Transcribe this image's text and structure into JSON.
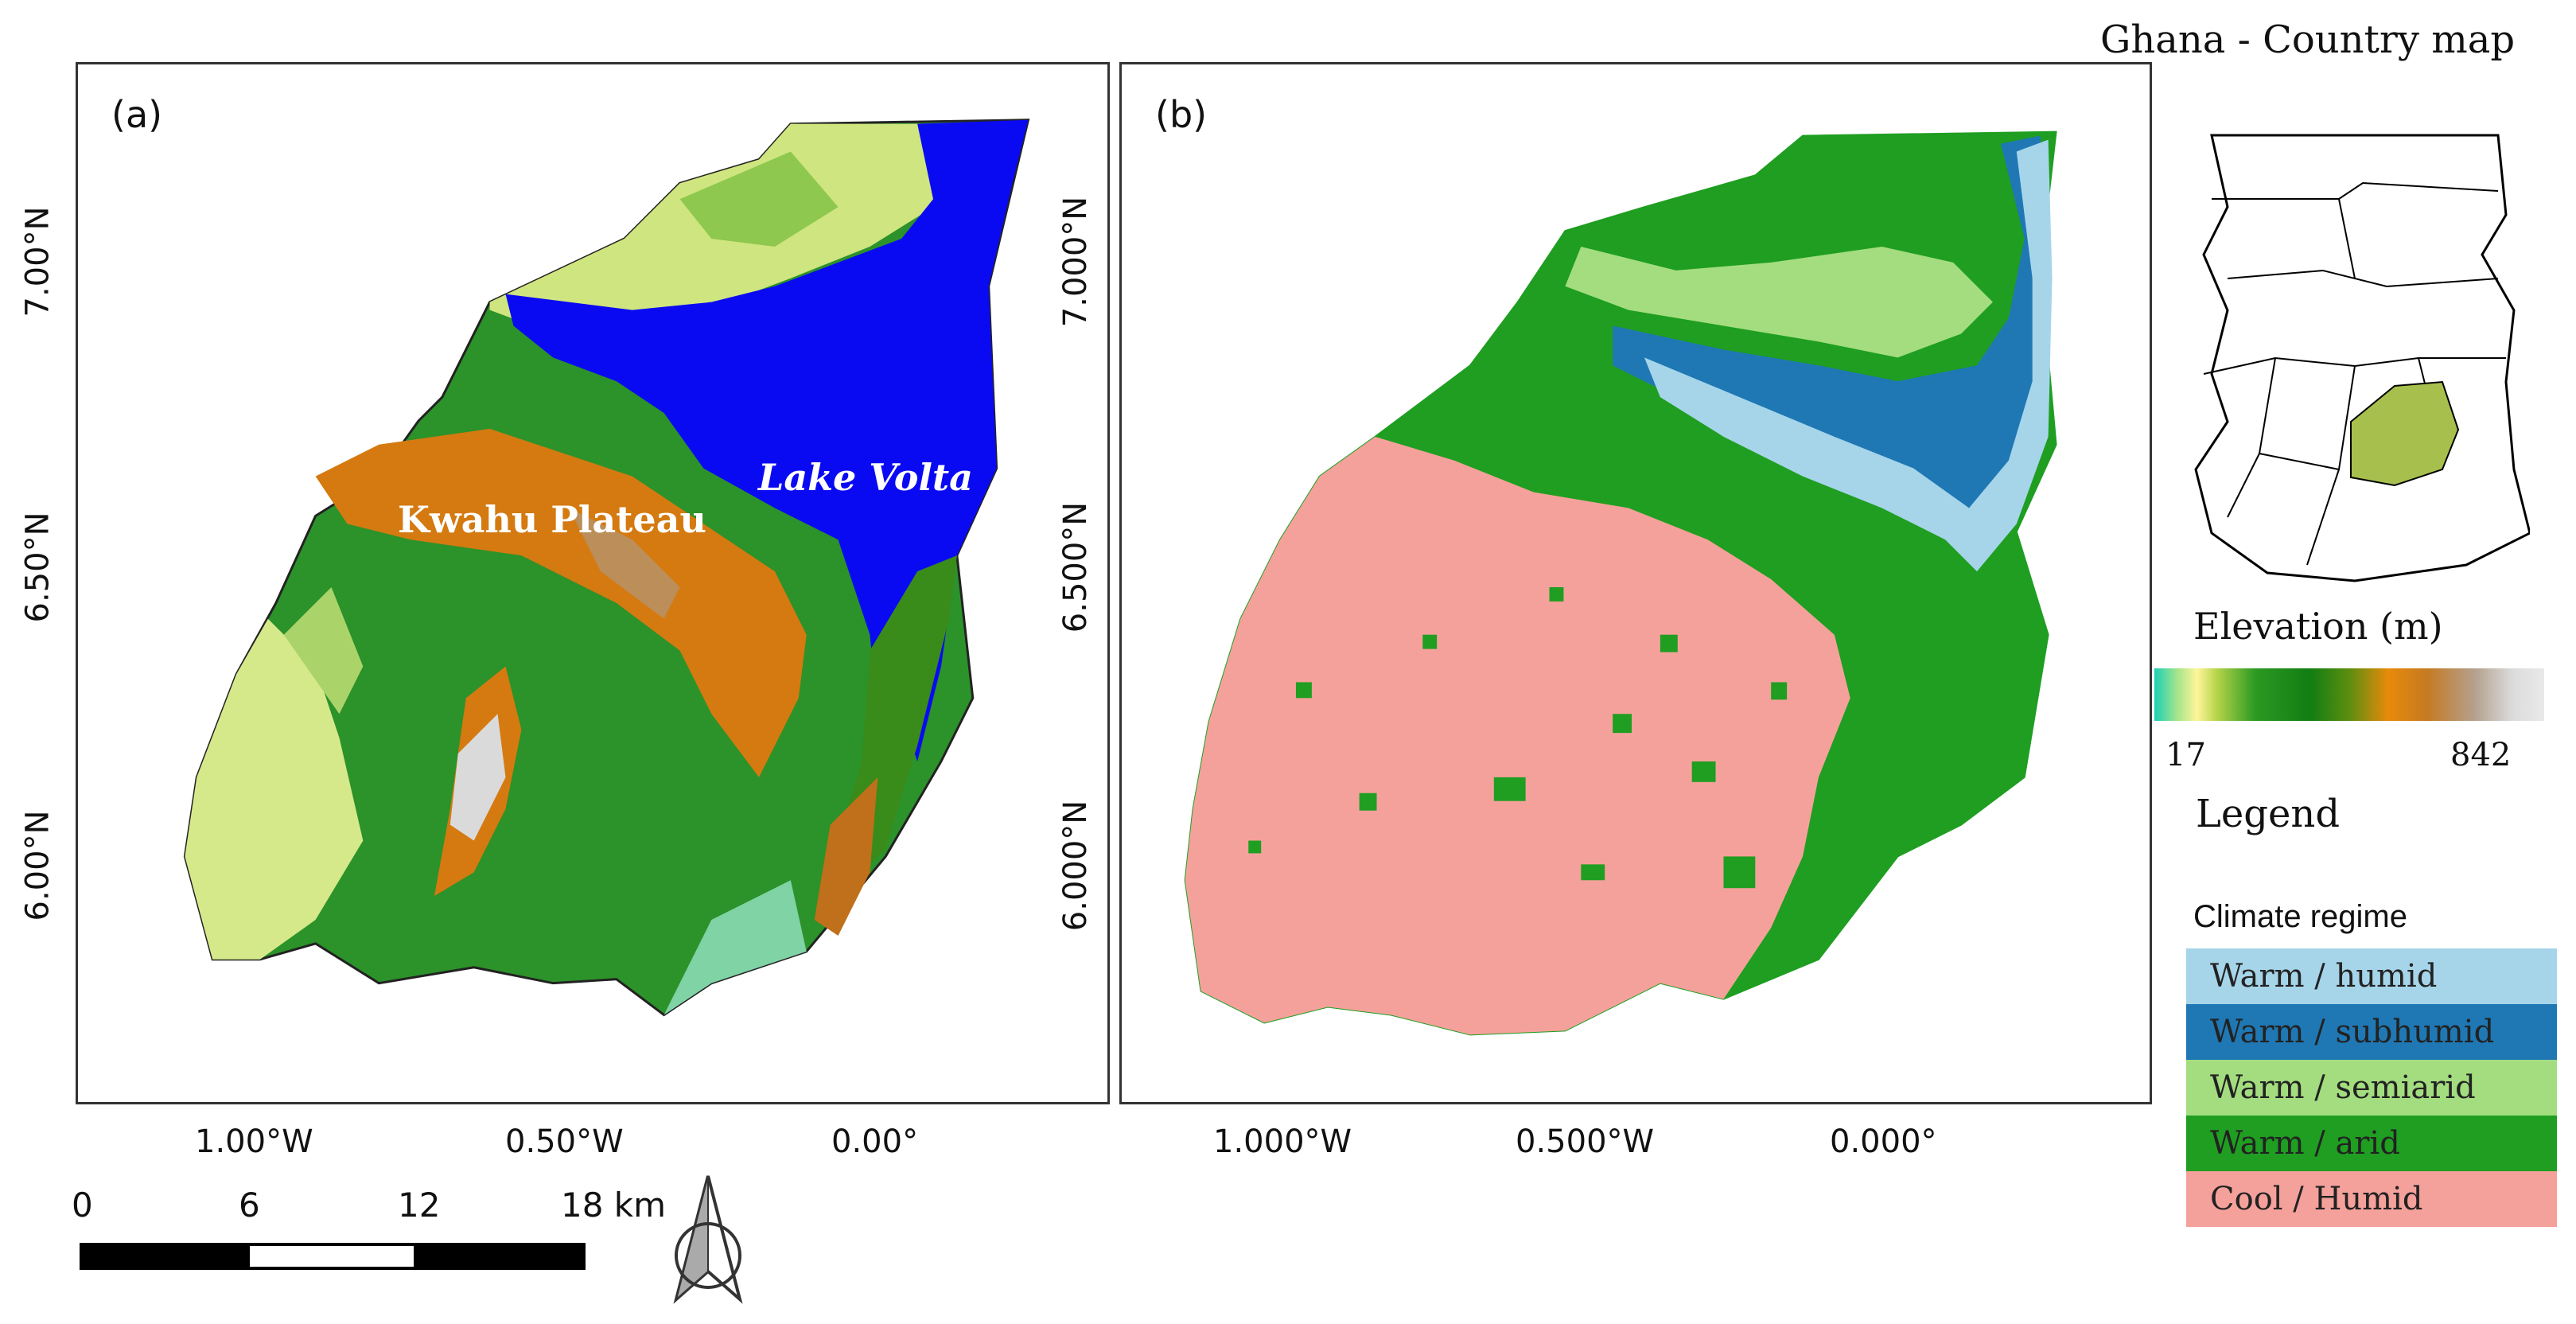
{
  "panel_a": {
    "label": "(a)",
    "x_ticks": [
      "1.00°W",
      "0.50°W",
      "0.00°"
    ],
    "y_ticks": [
      "7.00°N",
      "6.50°N",
      "6.00°N"
    ],
    "labels": {
      "plateau": "Kwahu Plateau",
      "lake": "Lake Volta"
    }
  },
  "panel_b": {
    "label": "(b)",
    "x_ticks": [
      "1.000°W",
      "0.500°W",
      "0.000°"
    ],
    "y_ticks": [
      "7.000°N",
      "6.500°N",
      "6.000°N"
    ]
  },
  "inset": {
    "title": "Ghana - Country map",
    "highlight_color": "#a7c04d"
  },
  "elevation": {
    "title": "Elevation (m)",
    "min": "17",
    "max": "842"
  },
  "legend": {
    "title": "Legend",
    "subtitle": "Climate regime",
    "items": [
      {
        "label": "Warm / humid",
        "color": "#a6d5ea"
      },
      {
        "label": "Warm / subhumid",
        "color": "#1f78b4"
      },
      {
        "label": "Warm / semiarid",
        "color": "#a3dd7f"
      },
      {
        "label": "Warm / arid",
        "color": "#1f9e21"
      },
      {
        "label": "Cool / Humid",
        "color": "#f5a19b"
      }
    ]
  },
  "scale": {
    "ticks": [
      "0",
      "6",
      "12",
      "18 km"
    ]
  },
  "colors": {
    "lake": "#0a0af2",
    "elev_low": "#d9ec8a",
    "elev_mid": "#1d8e1d",
    "elev_high": "#d47a10",
    "elev_peak": "#d9d9d9",
    "cool_humid": "#f5a19b",
    "warm_arid": "#1f9e21"
  }
}
